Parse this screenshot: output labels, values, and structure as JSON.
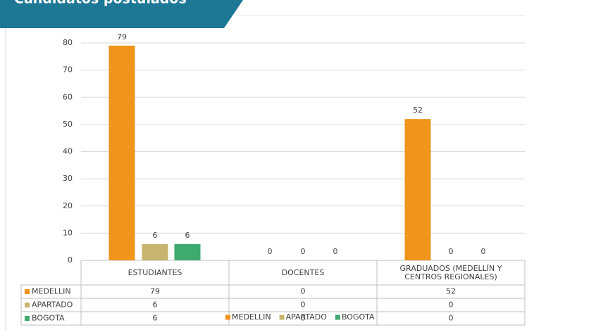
{
  "chart_data": {
    "type": "bar",
    "title": "Candidatos postulados",
    "categories": [
      "ESTUDIANTES",
      "DOCENTES",
      "GRADUADOS (MEDELLÍN Y CENTROS REGIONALES)"
    ],
    "series": [
      {
        "name": "MEDELLIN",
        "color": "#f0941c",
        "values": [
          79,
          0,
          52
        ]
      },
      {
        "name": "APARTADO",
        "color": "#c8b46e",
        "values": [
          6,
          0,
          0
        ]
      },
      {
        "name": "BOGOTA",
        "color": "#3eaa6e",
        "values": [
          6,
          0,
          0
        ]
      }
    ],
    "ylim": [
      0,
      80
    ],
    "yticks": [
      0,
      10,
      20,
      30,
      40,
      50,
      60,
      70,
      80
    ],
    "grid": true,
    "legend": "bottom"
  }
}
